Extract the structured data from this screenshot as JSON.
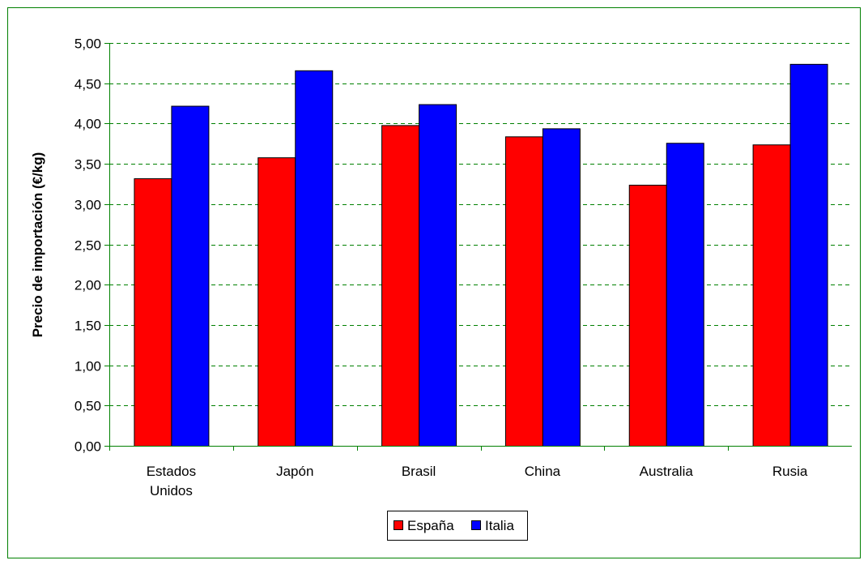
{
  "chart_data": {
    "type": "bar",
    "title": "",
    "xlabel": "",
    "ylabel": "Precio de importación (€/kg)",
    "categories": [
      [
        "Estados",
        "Unidos"
      ],
      [
        "Japón"
      ],
      [
        "Brasil"
      ],
      [
        "China"
      ],
      [
        "Australia"
      ],
      [
        "Rusia"
      ]
    ],
    "series": [
      {
        "name": "España",
        "color": "#ff0000",
        "values": [
          3.32,
          3.58,
          3.98,
          3.84,
          3.24,
          3.74
        ]
      },
      {
        "name": "Italia",
        "color": "#0000ff",
        "values": [
          4.22,
          4.66,
          4.24,
          3.94,
          3.76,
          4.74
        ]
      }
    ],
    "ylim": [
      0,
      5
    ],
    "yticks": [
      "0,00",
      "0,50",
      "1,00",
      "1,50",
      "2,00",
      "2,50",
      "3,00",
      "3,50",
      "4,00",
      "4,50",
      "5,00"
    ],
    "grid": true,
    "grid_color": "#008000",
    "frame_color": "#008000",
    "legend_position": "bottom-center"
  }
}
